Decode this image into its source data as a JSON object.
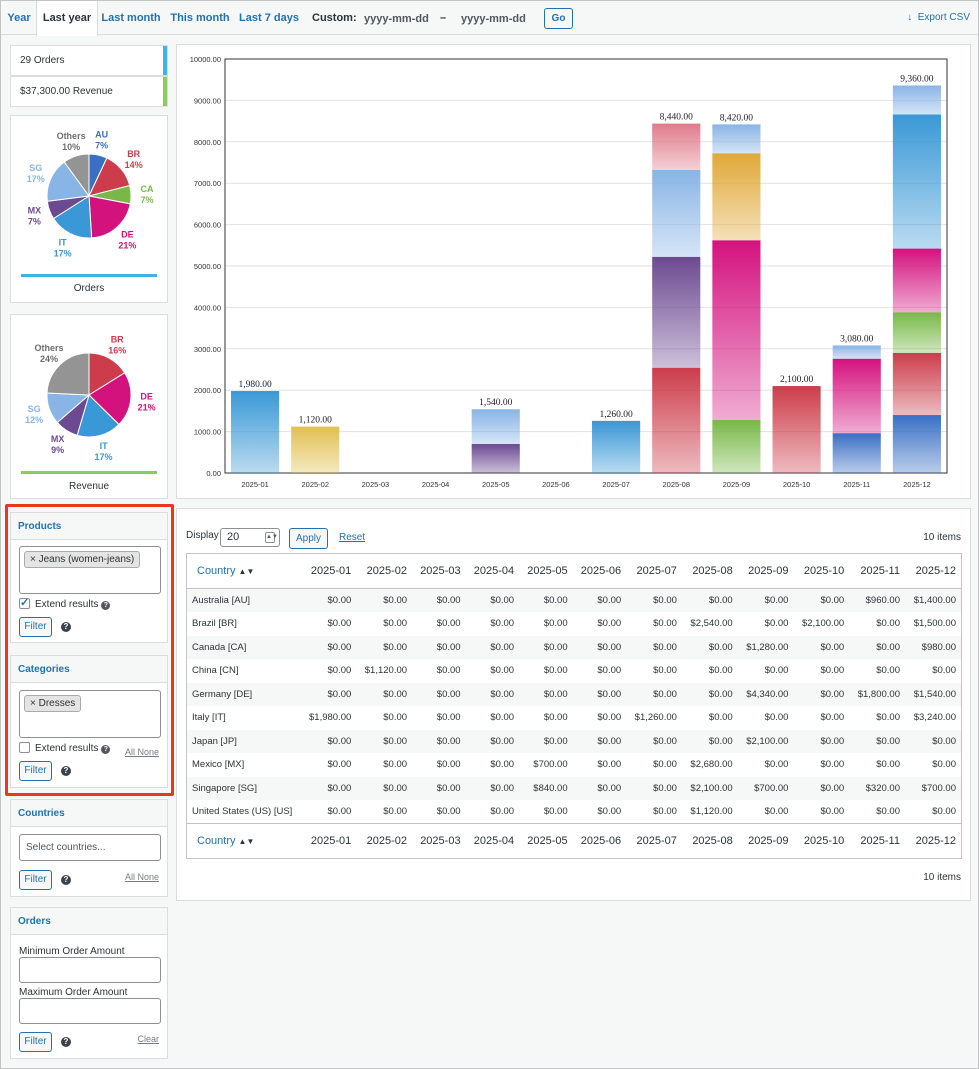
{
  "nav": {
    "tabs": [
      {
        "label": "Year",
        "active": false
      },
      {
        "label": "Last year",
        "active": true
      },
      {
        "label": "Last month",
        "active": false
      },
      {
        "label": "This month",
        "active": false
      },
      {
        "label": "Last 7 days",
        "active": false
      }
    ],
    "custom_label": "Custom:",
    "start_placeholder": "yyyy-mm-dd",
    "separator": "–",
    "end_placeholder": "yyyy-mm-dd",
    "go_label": "Go",
    "export_label": "Export CSV"
  },
  "summary": {
    "orders": "29 Orders",
    "revenue": "$37,300.00 Revenue",
    "orders_color": "#3eb3e6",
    "revenue_color": "#8fc961"
  },
  "orders_pie": {
    "title": "Orders",
    "slices": [
      {
        "label": "AU",
        "pct": "7%",
        "value": 7,
        "color": "#3a6fc4"
      },
      {
        "label": "BR",
        "pct": "14%",
        "value": 14,
        "color": "#cc3c4a"
      },
      {
        "label": "CA",
        "pct": "7%",
        "value": 7,
        "color": "#79b848"
      },
      {
        "label": "DE",
        "pct": "21%",
        "value": 21,
        "color": "#d4127e"
      },
      {
        "label": "IT",
        "pct": "17%",
        "value": 17,
        "color": "#3a98d6"
      },
      {
        "label": "MX",
        "pct": "7%",
        "value": 7,
        "color": "#6c4a91"
      },
      {
        "label": "SG",
        "pct": "17%",
        "value": 17,
        "color": "#89b4e6"
      },
      {
        "label": "Others",
        "pct": "10%",
        "value": 10,
        "color": "#949494"
      }
    ]
  },
  "revenue_pie": {
    "title": "Revenue",
    "slices": [
      {
        "label": "BR",
        "pct": "16%",
        "value": 16,
        "color": "#cc3c4a"
      },
      {
        "label": "DE",
        "pct": "21%",
        "value": 21,
        "color": "#d4127e"
      },
      {
        "label": "IT",
        "pct": "17%",
        "value": 17,
        "color": "#3a98d6"
      },
      {
        "label": "MX",
        "pct": "9%",
        "value": 9,
        "color": "#6c4a91"
      },
      {
        "label": "SG",
        "pct": "12%",
        "value": 12,
        "color": "#89b4e6"
      },
      {
        "label": "Others",
        "pct": "24%",
        "value": 24,
        "color": "#949494"
      }
    ]
  },
  "filters": {
    "products": {
      "title": "Products",
      "chip": "Jeans (women-jeans)",
      "extend_label": "Extend results",
      "extend_checked": true,
      "filter_label": "Filter"
    },
    "categories": {
      "title": "Categories",
      "chip": "Dresses",
      "extend_label": "Extend results",
      "extend_checked": false,
      "all_label": "All",
      "none_label": "None",
      "filter_label": "Filter"
    },
    "countries": {
      "title": "Countries",
      "placeholder": "Select countries...",
      "all_label": "All",
      "none_label": "None",
      "filter_label": "Filter"
    },
    "orders": {
      "title": "Orders",
      "min_label": "Minimum Order Amount",
      "max_label": "Maximum Order Amount",
      "filter_label": "Filter",
      "clear_label": "Clear"
    }
  },
  "chart_data": {
    "type": "bar",
    "stacked": true,
    "categories": [
      "2025-01",
      "2025-02",
      "2025-03",
      "2025-04",
      "2025-05",
      "2025-06",
      "2025-07",
      "2025-08",
      "2025-09",
      "2025-10",
      "2025-11",
      "2025-12"
    ],
    "ylim": [
      0,
      10000
    ],
    "yticks": [
      "0.00",
      "1000.00",
      "2000.00",
      "3000.00",
      "4000.00",
      "5000.00",
      "6000.00",
      "7000.00",
      "8000.00",
      "9000.00",
      "10000.00"
    ],
    "grid": true,
    "totals": [
      "1,980.00",
      "1,120.00",
      "",
      "",
      "1,540.00",
      "",
      "1,260.00",
      "8,440.00",
      "8,420.00",
      "2,100.00",
      "3,080.00",
      "9,360.00"
    ],
    "series": [
      {
        "name": "Australia [AU]",
        "color": "#3a6fc4",
        "values": [
          0,
          0,
          0,
          0,
          0,
          0,
          0,
          0,
          0,
          0,
          960,
          1400
        ]
      },
      {
        "name": "Brazil [BR]",
        "color": "#cc3c4a",
        "values": [
          0,
          0,
          0,
          0,
          0,
          0,
          0,
          2540,
          0,
          2100,
          0,
          1500
        ]
      },
      {
        "name": "Canada [CA]",
        "color": "#79b848",
        "values": [
          0,
          0,
          0,
          0,
          0,
          0,
          0,
          0,
          1280,
          0,
          0,
          980
        ]
      },
      {
        "name": "China [CN]",
        "color": "#e0c050",
        "values": [
          0,
          1120,
          0,
          0,
          0,
          0,
          0,
          0,
          0,
          0,
          0,
          0
        ]
      },
      {
        "name": "Germany [DE]",
        "color": "#d4127e",
        "values": [
          0,
          0,
          0,
          0,
          0,
          0,
          0,
          0,
          4340,
          0,
          1800,
          1540
        ]
      },
      {
        "name": "Italy [IT]",
        "color": "#3a98d6",
        "values": [
          1980,
          0,
          0,
          0,
          0,
          0,
          1260,
          0,
          0,
          0,
          0,
          3240
        ]
      },
      {
        "name": "Japan [JP]",
        "color": "#e0a838",
        "values": [
          0,
          0,
          0,
          0,
          0,
          0,
          0,
          0,
          2100,
          0,
          0,
          0
        ]
      },
      {
        "name": "Mexico [MX]",
        "color": "#6c4a91",
        "values": [
          0,
          0,
          0,
          0,
          700,
          0,
          0,
          2680,
          0,
          0,
          0,
          0
        ]
      },
      {
        "name": "Singapore [SG]",
        "color": "#89b4e6",
        "values": [
          0,
          0,
          0,
          0,
          840,
          0,
          0,
          2100,
          700,
          0,
          320,
          700
        ]
      },
      {
        "name": "United States (US) [US]",
        "color": "#e07a8a",
        "values": [
          0,
          0,
          0,
          0,
          0,
          0,
          0,
          1120,
          0,
          0,
          0,
          0
        ]
      }
    ]
  },
  "table": {
    "display_label": "Display",
    "display_value": "20",
    "apply_label": "Apply",
    "reset_label": "Reset",
    "items_count": "10 items",
    "country_header": "Country",
    "months": [
      "2025-01",
      "2025-02",
      "2025-03",
      "2025-04",
      "2025-05",
      "2025-06",
      "2025-07",
      "2025-08",
      "2025-09",
      "2025-10",
      "2025-11",
      "2025-12"
    ],
    "rows": [
      {
        "country": "Australia [AU]",
        "values": [
          "$0.00",
          "$0.00",
          "$0.00",
          "$0.00",
          "$0.00",
          "$0.00",
          "$0.00",
          "$0.00",
          "$0.00",
          "$0.00",
          "$960.00",
          "$1,400.00"
        ]
      },
      {
        "country": "Brazil [BR]",
        "values": [
          "$0.00",
          "$0.00",
          "$0.00",
          "$0.00",
          "$0.00",
          "$0.00",
          "$0.00",
          "$2,540.00",
          "$0.00",
          "$2,100.00",
          "$0.00",
          "$1,500.00"
        ]
      },
      {
        "country": "Canada [CA]",
        "values": [
          "$0.00",
          "$0.00",
          "$0.00",
          "$0.00",
          "$0.00",
          "$0.00",
          "$0.00",
          "$0.00",
          "$1,280.00",
          "$0.00",
          "$0.00",
          "$980.00"
        ]
      },
      {
        "country": "China [CN]",
        "values": [
          "$0.00",
          "$1,120.00",
          "$0.00",
          "$0.00",
          "$0.00",
          "$0.00",
          "$0.00",
          "$0.00",
          "$0.00",
          "$0.00",
          "$0.00",
          "$0.00"
        ]
      },
      {
        "country": "Germany [DE]",
        "values": [
          "$0.00",
          "$0.00",
          "$0.00",
          "$0.00",
          "$0.00",
          "$0.00",
          "$0.00",
          "$0.00",
          "$4,340.00",
          "$0.00",
          "$1,800.00",
          "$1,540.00"
        ]
      },
      {
        "country": "Italy [IT]",
        "values": [
          "$1,980.00",
          "$0.00",
          "$0.00",
          "$0.00",
          "$0.00",
          "$0.00",
          "$1,260.00",
          "$0.00",
          "$0.00",
          "$0.00",
          "$0.00",
          "$3,240.00"
        ]
      },
      {
        "country": "Japan [JP]",
        "values": [
          "$0.00",
          "$0.00",
          "$0.00",
          "$0.00",
          "$0.00",
          "$0.00",
          "$0.00",
          "$0.00",
          "$2,100.00",
          "$0.00",
          "$0.00",
          "$0.00"
        ]
      },
      {
        "country": "Mexico [MX]",
        "values": [
          "$0.00",
          "$0.00",
          "$0.00",
          "$0.00",
          "$700.00",
          "$0.00",
          "$0.00",
          "$2,680.00",
          "$0.00",
          "$0.00",
          "$0.00",
          "$0.00"
        ]
      },
      {
        "country": "Singapore [SG]",
        "values": [
          "$0.00",
          "$0.00",
          "$0.00",
          "$0.00",
          "$840.00",
          "$0.00",
          "$0.00",
          "$2,100.00",
          "$700.00",
          "$0.00",
          "$320.00",
          "$700.00"
        ]
      },
      {
        "country": "United States (US) [US]",
        "values": [
          "$0.00",
          "$0.00",
          "$0.00",
          "$0.00",
          "$0.00",
          "$0.00",
          "$0.00",
          "$1,120.00",
          "$0.00",
          "$0.00",
          "$0.00",
          "$0.00"
        ]
      }
    ]
  }
}
